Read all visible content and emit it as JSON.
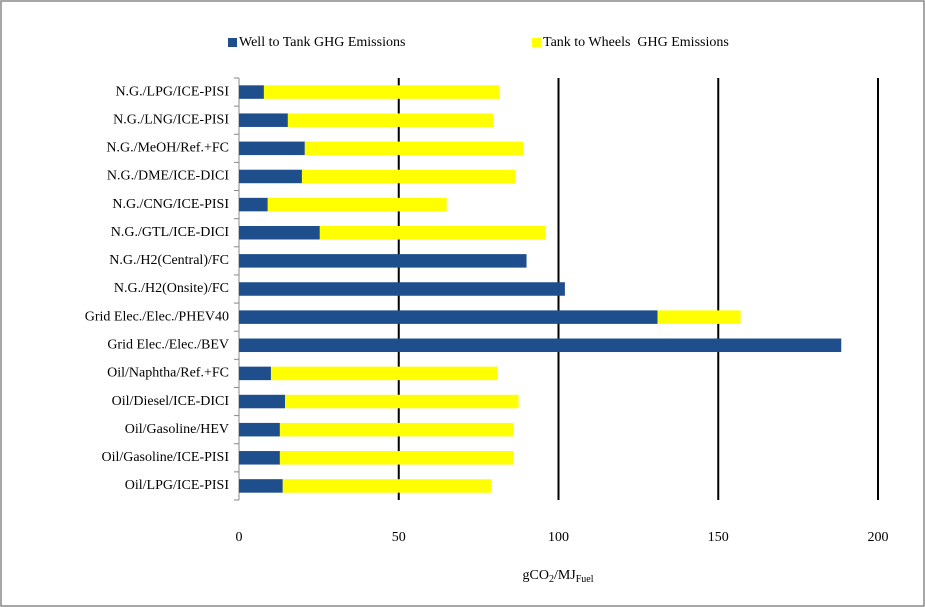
{
  "chart_data": {
    "type": "bar",
    "orientation": "horizontal",
    "stacked": true,
    "categories": [
      "N.G./LPG/ICE-PISI",
      "N.G./LNG/ICE-PISI",
      "N.G./MeOH/Ref.+FC",
      "N.G./DME/ICE-DICI",
      "N.G./CNG/ICE-PISI",
      "N.G./GTL/ICE-DICI",
      "N.G./H2(Central)/FC",
      "N.G./H2(Onsite)/FC",
      "Grid Elec./Elec./PHEV40",
      "Grid Elec./Elec./BEV",
      "Oil/Naphtha/Ref.+FC",
      "Oil/Diesel/ICE-DICI",
      "Oil/Gasoline/HEV",
      "Oil/Gasoline/ICE-PISI",
      "Oil/LPG/ICE-PISI"
    ],
    "series": [
      {
        "name": "Well to Tank GHG Emissions",
        "color": "#1f4e8c",
        "values": [
          7.8,
          15.3,
          20.6,
          19.7,
          9,
          25.3,
          90,
          102,
          131,
          188.5,
          10,
          14.4,
          12.8,
          12.8,
          13.7
        ]
      },
      {
        "name": "Tank to Wheels  GHG Emissions",
        "color": "#ffff00",
        "values": [
          73.7,
          64.4,
          68.4,
          66.8,
          56,
          70.7,
          0,
          0,
          26,
          0,
          71,
          73.1,
          73.2,
          73.2,
          65.3
        ]
      }
    ],
    "xlim": [
      0,
      200
    ],
    "xticks": [
      0,
      50,
      100,
      150,
      200
    ],
    "grid": true,
    "x_label": [
      "gCO",
      "2",
      "/MJ",
      "Fuel"
    ],
    "legend": "top"
  }
}
